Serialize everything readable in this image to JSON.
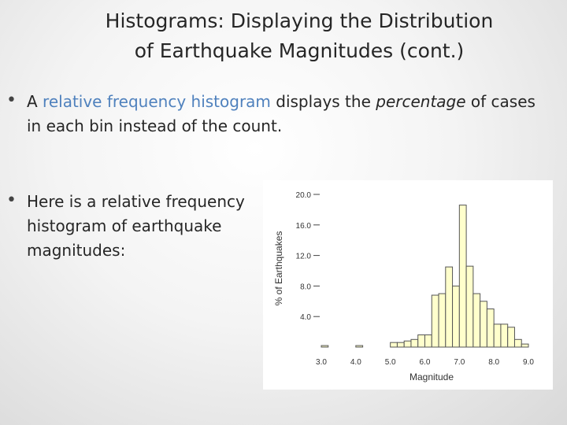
{
  "slide": {
    "title_line1": "Histograms: Displaying the Distribution",
    "title_line2": "of Earthquake Magnitudes (cont.)",
    "bullet1": {
      "pre": "A ",
      "highlight": "relative frequency histogram",
      "mid": " displays the ",
      "italic": "percentage",
      "post": " of cases in each bin instead of the count."
    },
    "bullet2": "Here is a relative frequency histogram of earthquake magnitudes:"
  },
  "colors": {
    "accent": "#4f81bd",
    "bar_fill": "#ffffcc",
    "bar_stroke": "#555555"
  },
  "chart_data": {
    "type": "bar",
    "xlabel": "Magnitude",
    "ylabel": "% of Earthquakes",
    "xlim": [
      3.0,
      9.0
    ],
    "ylim": [
      0,
      20.0
    ],
    "xticks": [
      "3.0",
      "4.0",
      "5.0",
      "6.0",
      "7.0",
      "8.0",
      "9.0"
    ],
    "yticks": [
      "4.0",
      "8.0",
      "12.0",
      "16.0",
      "20.0"
    ],
    "bin_width": 0.2,
    "bins": [
      {
        "x": 3.0,
        "value": 0.2
      },
      {
        "x": 4.0,
        "value": 0.2
      },
      {
        "x": 5.0,
        "value": 0.6
      },
      {
        "x": 5.2,
        "value": 0.6
      },
      {
        "x": 5.4,
        "value": 0.8
      },
      {
        "x": 5.6,
        "value": 1.0
      },
      {
        "x": 5.8,
        "value": 1.6
      },
      {
        "x": 6.0,
        "value": 1.6
      },
      {
        "x": 6.2,
        "value": 6.8
      },
      {
        "x": 6.4,
        "value": 7.0
      },
      {
        "x": 6.6,
        "value": 10.5
      },
      {
        "x": 6.8,
        "value": 8.0
      },
      {
        "x": 7.0,
        "value": 18.6
      },
      {
        "x": 7.2,
        "value": 10.6
      },
      {
        "x": 7.4,
        "value": 7.0
      },
      {
        "x": 7.6,
        "value": 6.0
      },
      {
        "x": 7.8,
        "value": 5.0
      },
      {
        "x": 8.0,
        "value": 3.0
      },
      {
        "x": 8.2,
        "value": 3.0
      },
      {
        "x": 8.4,
        "value": 2.6
      },
      {
        "x": 8.6,
        "value": 1.0
      },
      {
        "x": 8.8,
        "value": 0.4
      }
    ]
  }
}
